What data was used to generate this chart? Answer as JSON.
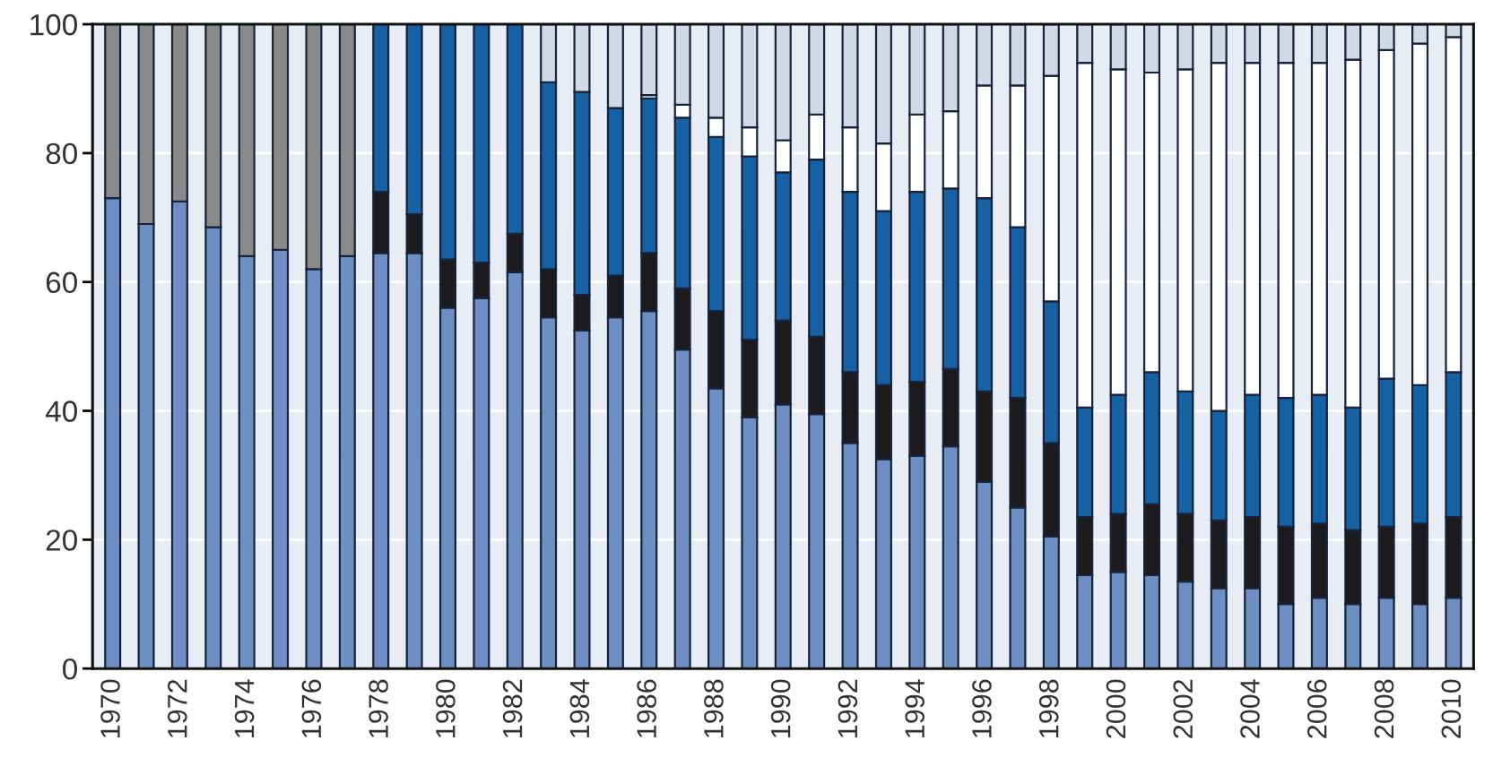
{
  "chart_data": {
    "type": "bar",
    "stacked": true,
    "categories": [
      "1970",
      null,
      "1972",
      null,
      "1974",
      null,
      "1976",
      null,
      "1978",
      null,
      "1980",
      null,
      "1982",
      null,
      "1984",
      null,
      "1986",
      null,
      "1988",
      null,
      "1990",
      null,
      "1992",
      null,
      "1994",
      null,
      "1996",
      null,
      "1998",
      null,
      "2000",
      null,
      "2002",
      null,
      "2004",
      null,
      "2006",
      null,
      "2008",
      null,
      "2010"
    ],
    "series": [
      {
        "color": "#6d8fc4",
        "values": [
          73,
          69,
          72.5,
          68.5,
          64,
          65,
          62,
          64,
          64.5,
          64.5,
          56,
          57.5,
          61.5,
          54.5,
          52.5,
          54.5,
          55.5,
          49.5,
          43.5,
          39,
          41,
          39.5,
          35,
          32.5,
          33,
          34.5,
          29,
          25,
          20.5,
          14.5,
          15,
          14.5,
          13.5,
          12.5,
          12.5,
          10,
          11,
          10,
          11,
          10,
          11
        ]
      },
      {
        "color": "#1c1a1c",
        "values": [
          null,
          null,
          null,
          null,
          null,
          null,
          null,
          null,
          9.5,
          6,
          7.5,
          5.5,
          6,
          7.5,
          5.5,
          6.5,
          9,
          9.5,
          12,
          12,
          13,
          12,
          11,
          11.5,
          11.5,
          12,
          14,
          17,
          14.5,
          9,
          9,
          11,
          10.5,
          10.5,
          11,
          12,
          11.5,
          11.5,
          11,
          12.5,
          12.5
        ]
      },
      {
        "color": "#1660a4",
        "values": [
          null,
          null,
          null,
          null,
          null,
          null,
          null,
          null,
          26,
          29.5,
          36.5,
          37,
          32.5,
          29,
          31.5,
          26,
          24,
          26.5,
          27,
          28.5,
          23,
          27.5,
          28,
          27,
          29.5,
          28,
          30,
          26.5,
          22,
          17,
          18.5,
          20.5,
          19,
          17,
          19,
          20,
          20,
          19,
          23,
          21.5,
          22.5
        ]
      },
      {
        "color": "#ffffff",
        "values": [
          null,
          null,
          null,
          null,
          null,
          null,
          null,
          null,
          null,
          null,
          null,
          null,
          null,
          null,
          null,
          null,
          0.5,
          2,
          3,
          4.5,
          5,
          7,
          10,
          10.5,
          12,
          12,
          17.5,
          22,
          35,
          53.5,
          50.5,
          46.5,
          50,
          54,
          51.5,
          52,
          51.5,
          54,
          51,
          53,
          52
        ]
      },
      {
        "color": "#d3d8e6",
        "values": [
          null,
          null,
          null,
          null,
          null,
          null,
          null,
          null,
          null,
          null,
          null,
          null,
          null,
          9,
          10.5,
          13,
          11,
          12.5,
          14.5,
          16,
          18,
          14,
          16,
          18.5,
          14,
          13.5,
          9.5,
          9.5,
          8,
          6,
          7,
          7.5,
          7,
          6,
          6,
          6,
          6,
          5.5,
          4,
          3,
          2
        ]
      },
      {
        "color": "#8a8a8a",
        "values": [
          27,
          31,
          27.5,
          31.5,
          36,
          35,
          38,
          36,
          null,
          null,
          null,
          null,
          null,
          null,
          null,
          null,
          null,
          null,
          null,
          null,
          null,
          null,
          null,
          null,
          null,
          null,
          null,
          null,
          null,
          null,
          null,
          null,
          null,
          null,
          null,
          null,
          null,
          null,
          null,
          null,
          null
        ]
      }
    ],
    "ylim": [
      0,
      100
    ],
    "yticks": [
      0,
      20,
      40,
      60,
      80,
      100
    ],
    "grid": "y"
  }
}
